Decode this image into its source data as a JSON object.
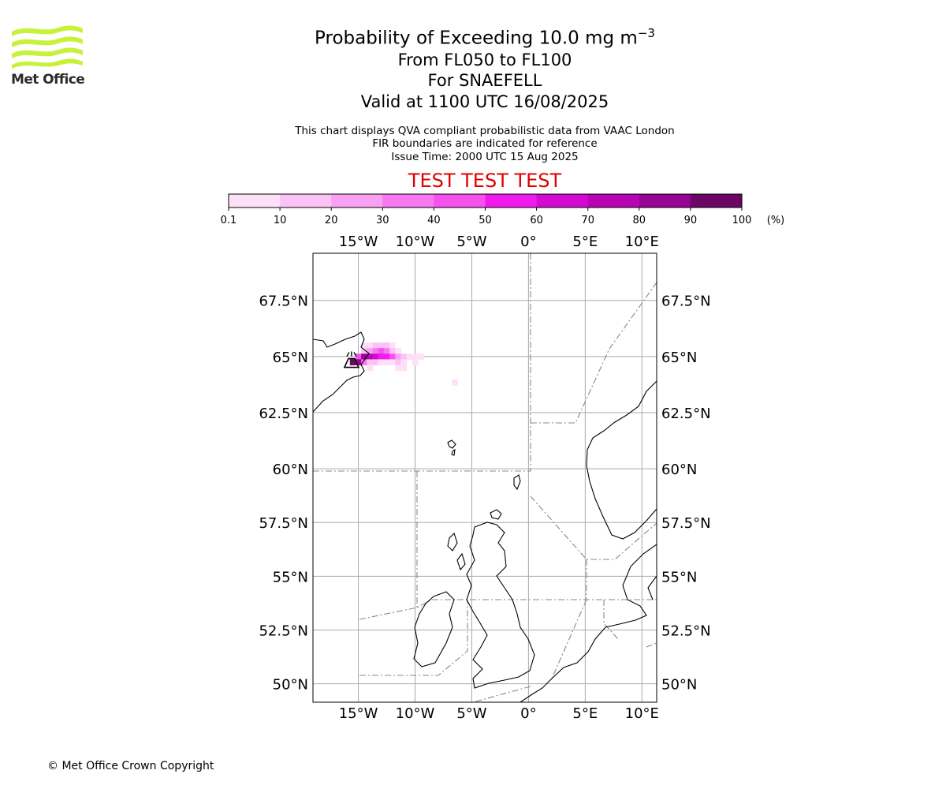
{
  "logo": {
    "text": "Met Office",
    "colors": {
      "waves": "#c8f23a",
      "text": "#2b2b2b"
    }
  },
  "header": {
    "title": "Probability of Exceeding 10.0 mg m",
    "title_superscript": "−3",
    "level_range": "From FL050 to FL100",
    "volcano": "For SNAEFELL",
    "valid": "Valid at 1100 UTC 16/08/2025"
  },
  "notes": {
    "line1": "This chart displays QVA compliant probabilistic data from VAAC London",
    "line2": "FIR boundaries are indicated for reference",
    "issue": "Issue Time: 2000 UTC 15 Aug 2025"
  },
  "banner": {
    "text": "TEST TEST TEST",
    "color": "#e00000"
  },
  "colorbar": {
    "unit": "(%)",
    "ticks": [
      "0.1",
      "10",
      "20",
      "30",
      "40",
      "50",
      "60",
      "70",
      "80",
      "90",
      "100"
    ],
    "colors": [
      "#fde0f8",
      "#fbc2f6",
      "#f9a0f2",
      "#f878ef",
      "#f651ec",
      "#f21bed",
      "#d30bd2",
      "#b705b6",
      "#950494",
      "#6b0666"
    ]
  },
  "map": {
    "projection": "lat-lon",
    "lon_range": [
      -19.0,
      11.3
    ],
    "lat_range": [
      49.6,
      69.6
    ],
    "lon_ticks": [
      {
        "value": -15,
        "label": "15°W"
      },
      {
        "value": -10,
        "label": "10°W"
      },
      {
        "value": -5,
        "label": "5°W"
      },
      {
        "value": 0,
        "label": "0°"
      },
      {
        "value": 5,
        "label": "5°E"
      },
      {
        "value": 10,
        "label": "10°E"
      }
    ],
    "lat_ticks": [
      {
        "value": 67.5,
        "label": "67.5°N"
      },
      {
        "value": 65,
        "label": "65°N"
      },
      {
        "value": 62.5,
        "label": "62.5°N"
      },
      {
        "value": 60,
        "label": "60°N"
      },
      {
        "value": 57.5,
        "label": "57.5°N"
      },
      {
        "value": 55,
        "label": "55°N"
      },
      {
        "value": 52.5,
        "label": "52.5°N"
      },
      {
        "value": 50,
        "label": "50°N"
      }
    ],
    "grid": true,
    "volcano_marker": {
      "name": "SNAEFELL",
      "icon": "volcano-icon",
      "lat": 64.8,
      "lon": -15.6
    },
    "probability_cells": [
      {
        "lat": 65.5,
        "lon": -14.5,
        "p": 5
      },
      {
        "lat": 65.5,
        "lon": -14.0,
        "p": 8
      },
      {
        "lat": 65.5,
        "lon": -13.5,
        "p": 12
      },
      {
        "lat": 65.5,
        "lon": -13.0,
        "p": 18
      },
      {
        "lat": 65.5,
        "lon": -12.5,
        "p": 10
      },
      {
        "lat": 65.5,
        "lon": -12.0,
        "p": 5
      },
      {
        "lat": 65.25,
        "lon": -14.5,
        "p": 15
      },
      {
        "lat": 65.25,
        "lon": -14.0,
        "p": 25
      },
      {
        "lat": 65.25,
        "lon": -13.5,
        "p": 35
      },
      {
        "lat": 65.25,
        "lon": -13.0,
        "p": 45
      },
      {
        "lat": 65.25,
        "lon": -12.5,
        "p": 30
      },
      {
        "lat": 65.25,
        "lon": -12.0,
        "p": 12
      },
      {
        "lat": 65.25,
        "lon": -11.5,
        "p": 5
      },
      {
        "lat": 65.0,
        "lon": -15.0,
        "p": 40
      },
      {
        "lat": 65.0,
        "lon": -14.5,
        "p": 85
      },
      {
        "lat": 65.0,
        "lon": -14.0,
        "p": 75
      },
      {
        "lat": 65.0,
        "lon": -13.5,
        "p": 60
      },
      {
        "lat": 65.0,
        "lon": -13.0,
        "p": 55
      },
      {
        "lat": 65.0,
        "lon": -12.5,
        "p": 50
      },
      {
        "lat": 65.0,
        "lon": -12.0,
        "p": 40
      },
      {
        "lat": 65.0,
        "lon": -11.5,
        "p": 20
      },
      {
        "lat": 65.0,
        "lon": -11.0,
        "p": 10
      },
      {
        "lat": 65.0,
        "lon": -10.5,
        "p": 5
      },
      {
        "lat": 65.0,
        "lon": -10.0,
        "p": 5
      },
      {
        "lat": 65.0,
        "lon": -9.5,
        "p": 3
      },
      {
        "lat": 64.75,
        "lon": -15.5,
        "p": 95
      },
      {
        "lat": 64.75,
        "lon": -15.0,
        "p": 80
      },
      {
        "lat": 64.75,
        "lon": -14.5,
        "p": 30
      },
      {
        "lat": 64.75,
        "lon": -14.0,
        "p": 15
      },
      {
        "lat": 64.75,
        "lon": -13.5,
        "p": 10
      },
      {
        "lat": 64.75,
        "lon": -13.0,
        "p": 8
      },
      {
        "lat": 64.75,
        "lon": -12.5,
        "p": 6
      },
      {
        "lat": 64.75,
        "lon": -12.0,
        "p": 8
      },
      {
        "lat": 64.75,
        "lon": -11.5,
        "p": 10
      },
      {
        "lat": 64.75,
        "lon": -11.0,
        "p": 6
      },
      {
        "lat": 64.75,
        "lon": -10.0,
        "p": 3
      },
      {
        "lat": 64.5,
        "lon": -14.0,
        "p": 3
      },
      {
        "lat": 64.5,
        "lon": -11.5,
        "p": 5
      },
      {
        "lat": 64.5,
        "lon": -11.0,
        "p": 5
      },
      {
        "lat": 63.85,
        "lon": -6.5,
        "p": 3
      }
    ]
  },
  "footer": {
    "copyright": "© Met Office Crown Copyright"
  }
}
